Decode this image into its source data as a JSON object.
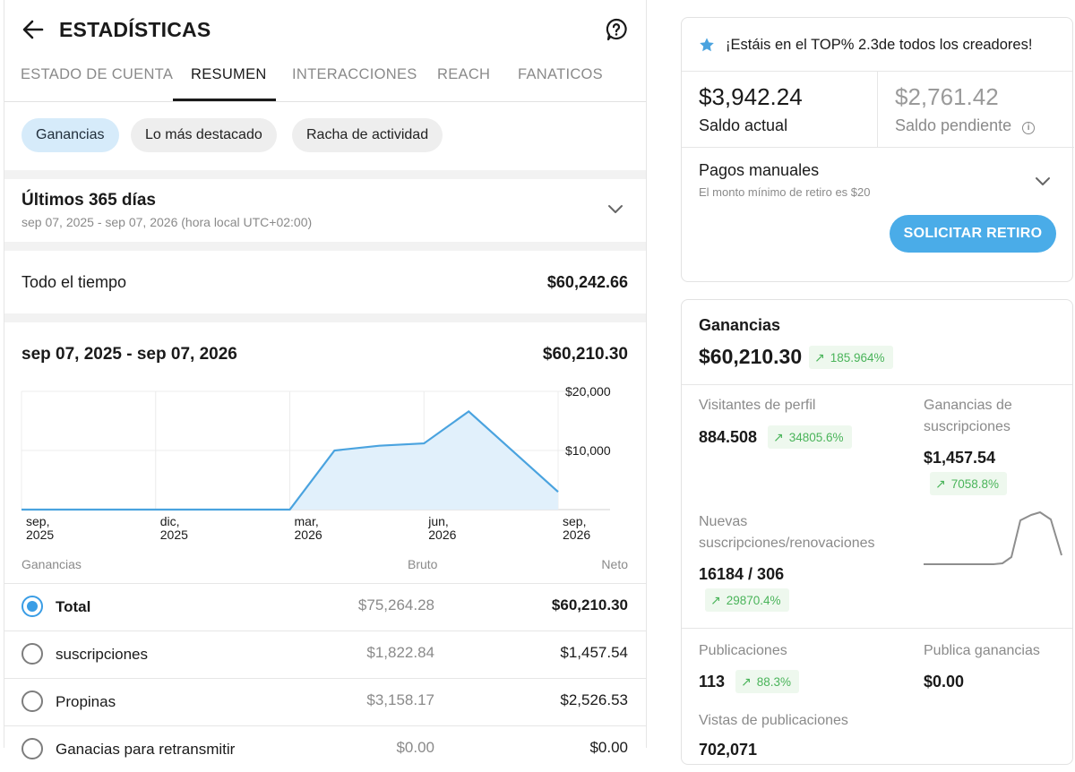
{
  "header": {
    "title": "ESTADÍSTICAS"
  },
  "tabs": [
    {
      "label": "ESTADO DE CUENTA"
    },
    {
      "label": "RESUMEN"
    },
    {
      "label": "INTERACCIONES"
    },
    {
      "label": "REACH"
    },
    {
      "label": "FANATICOS"
    }
  ],
  "chips": [
    {
      "label": "Ganancias"
    },
    {
      "label": "Lo más destacado"
    },
    {
      "label": "Racha de actividad"
    }
  ],
  "period": {
    "label": "Últimos 365 días",
    "dates": "sep 07, 2025 - sep 07, 2026 (hora local UTC+02:00)"
  },
  "all_time": {
    "label": "Todo el tiempo",
    "value": "$60,242.66"
  },
  "range": {
    "label": "sep 07, 2025 - sep 07, 2026",
    "value": "$60,210.30"
  },
  "chart_data": {
    "type": "area",
    "x": [
      "sep 2025",
      "oct 2025",
      "nov 2025",
      "dic 2025",
      "ene 2026",
      "feb 2026",
      "mar 2026",
      "abr 2026",
      "may 2026",
      "jun 2026",
      "jul 2026",
      "ago 2026",
      "sep 2026"
    ],
    "values": [
      0,
      0,
      0,
      0,
      0,
      0,
      0,
      10000,
      10800,
      11200,
      16600,
      9800,
      3000
    ],
    "tick_labels_x": [
      {
        "l1": "sep,",
        "l2": "2025"
      },
      {
        "l1": "dic,",
        "l2": "2025"
      },
      {
        "l1": "mar,",
        "l2": "2026"
      },
      {
        "l1": "jun,",
        "l2": "2026"
      },
      {
        "l1": "sep,",
        "l2": "2026"
      }
    ],
    "tick_labels_y": [
      "$20,000",
      "$10,000"
    ],
    "ylim": [
      0,
      20000
    ],
    "line_color": "#4aa3df",
    "fill_color": "#e1f0fb"
  },
  "table": {
    "headers": {
      "name": "Ganancias",
      "bruto": "Bruto",
      "neto": "Neto"
    },
    "rows": [
      {
        "label": "Total",
        "bruto": "$75,264.28",
        "neto": "$60,210.30",
        "selected": true
      },
      {
        "label": "suscripciones",
        "bruto": "$1,822.84",
        "neto": "$1,457.54",
        "selected": false
      },
      {
        "label": "Propinas",
        "bruto": "$3,158.17",
        "neto": "$2,526.53",
        "selected": false
      },
      {
        "label": "Ganacias para retransmitir",
        "bruto": "$0.00",
        "neto": "$0.00",
        "selected": false
      }
    ]
  },
  "balance_card": {
    "banner": "¡Estáis en el TOP% 2.3de todos los creadores!",
    "current_amount": "$3,942.24",
    "current_label": "Saldo actual",
    "pending_amount": "$2,761.42",
    "pending_label": "Saldo pendiente",
    "info_glyph": "i",
    "payments_title": "Pagos manuales",
    "payments_sub": "El monto mínimo de retiro es $20",
    "withdraw_button": "SOLICITAR RETIRO"
  },
  "earnings_card": {
    "title": "Ganancias",
    "amount": "$60,210.30",
    "amount_change": "185.964%",
    "profile_visitors_label": "Visitantes de perfil",
    "profile_visitors_value": "884.508",
    "profile_visitors_change": "34805.6%",
    "subs_earnings_label_1": "Ganancias de",
    "subs_earnings_label_2": "suscripciones",
    "subs_earnings_value": "$1,457.54",
    "subs_earnings_change": "7058.8%",
    "new_subs_label_1": "Nuevas",
    "new_subs_label_2": "suscripciones/renovaciones",
    "new_subs_value": "16184 / 306",
    "new_subs_change": "29870.4%",
    "posts_label": "Publicaciones",
    "posts_value": "113",
    "posts_change": "88.3%",
    "post_earnings_label": "Publica ganancias",
    "post_earnings_value": "$0.00",
    "post_views_label": "Vistas de publicaciones",
    "post_views_value": "702,071"
  },
  "colors": {
    "accent": "#4aace8",
    "positive": "#4ab45a",
    "muted": "#8a8a8a"
  }
}
